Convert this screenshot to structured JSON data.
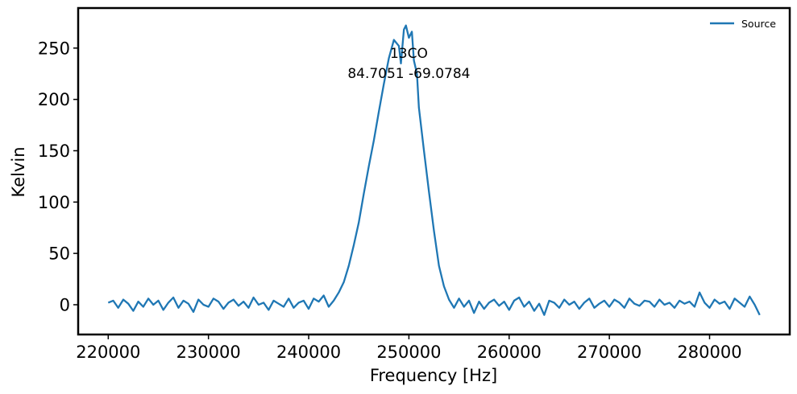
{
  "chart_data": {
    "type": "line",
    "xlabel": "Frequency [Hz]",
    "ylabel": "Kelvin",
    "xlim": [
      217000,
      288000
    ],
    "ylim": [
      -29,
      289
    ],
    "xticks": [
      220000,
      230000,
      240000,
      250000,
      260000,
      270000,
      280000
    ],
    "xtick_labels": [
      "220000",
      "230000",
      "240000",
      "250000",
      "260000",
      "270000",
      "280000"
    ],
    "yticks": [
      0,
      50,
      100,
      150,
      200,
      250
    ],
    "ytick_labels": [
      "0",
      "50",
      "100",
      "150",
      "200",
      "250"
    ],
    "grid": false,
    "legend_position": "top-right",
    "annotation": {
      "line1": "13CO",
      "line2": "84.7051 -69.0784",
      "x": 250000,
      "y": 245
    },
    "series": [
      {
        "name": "Source",
        "color": "#1f77b4",
        "x": [
          220000,
          220500,
          221000,
          221500,
          222000,
          222500,
          223000,
          223500,
          224000,
          224500,
          225000,
          225500,
          226000,
          226500,
          227000,
          227500,
          228000,
          228500,
          229000,
          229500,
          230000,
          230500,
          231000,
          231500,
          232000,
          232500,
          233000,
          233500,
          234000,
          234500,
          235000,
          235500,
          236000,
          236500,
          237000,
          237500,
          238000,
          238500,
          239000,
          239500,
          240000,
          240500,
          241000,
          241500,
          242000,
          242500,
          243000,
          243500,
          244000,
          244500,
          245000,
          245500,
          246000,
          246500,
          247000,
          247500,
          248000,
          248500,
          249000,
          249200,
          249500,
          249700,
          250000,
          250300,
          250500,
          250800,
          251000,
          251500,
          252000,
          252500,
          253000,
          253500,
          254000,
          254500,
          255000,
          255500,
          256000,
          256500,
          257000,
          257500,
          258000,
          258500,
          259000,
          259500,
          260000,
          260500,
          261000,
          261500,
          262000,
          262500,
          263000,
          263500,
          264000,
          264500,
          265000,
          265500,
          266000,
          266500,
          267000,
          267500,
          268000,
          268500,
          269000,
          269500,
          270000,
          270500,
          271000,
          271500,
          272000,
          272500,
          273000,
          273500,
          274000,
          274500,
          275000,
          275500,
          276000,
          276500,
          277000,
          277500,
          278000,
          278500,
          279000,
          279500,
          280000,
          280500,
          281000,
          281500,
          282000,
          282500,
          283000,
          283500,
          284000,
          284500,
          285000
        ],
        "y": [
          2,
          4,
          -3,
          5,
          1,
          -6,
          3,
          -2,
          6,
          0,
          4,
          -5,
          2,
          7,
          -3,
          4,
          1,
          -7,
          5,
          0,
          -2,
          6,
          3,
          -4,
          2,
          5,
          -1,
          3,
          -3,
          7,
          0,
          2,
          -5,
          4,
          1,
          -2,
          6,
          -3,
          2,
          4,
          -4,
          6,
          3,
          9,
          -2,
          4,
          12,
          22,
          38,
          58,
          80,
          108,
          135,
          160,
          188,
          215,
          240,
          258,
          252,
          235,
          268,
          272,
          260,
          266,
          238,
          225,
          192,
          150,
          110,
          72,
          38,
          18,
          5,
          -3,
          6,
          -2,
          4,
          -8,
          3,
          -4,
          2,
          5,
          -1,
          3,
          -5,
          4,
          7,
          -2,
          3,
          -6,
          1,
          -10,
          4,
          2,
          -3,
          5,
          0,
          3,
          -4,
          2,
          6,
          -3,
          1,
          4,
          -2,
          5,
          2,
          -3,
          6,
          1,
          -1,
          4,
          3,
          -2,
          5,
          0,
          2,
          -3,
          4,
          1,
          3,
          -2,
          12,
          2,
          -3,
          5,
          1,
          3,
          -4,
          6,
          2,
          -2,
          8,
          0,
          -10
        ]
      }
    ]
  }
}
